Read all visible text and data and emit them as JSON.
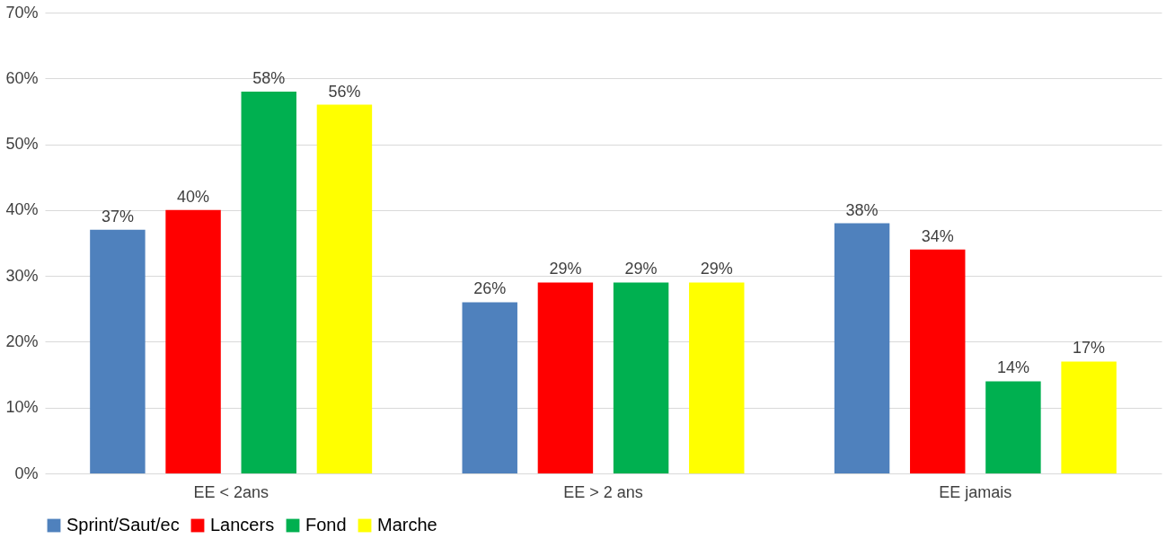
{
  "chart_data": {
    "type": "bar",
    "categories": [
      "EE < 2ans",
      "EE > 2 ans",
      "EE jamais"
    ],
    "series": [
      {
        "name": "Sprint/Saut/ec",
        "color": "#4f81bd",
        "values": [
          37,
          26,
          38
        ],
        "value_labels": [
          "37%",
          "26%",
          "38%"
        ]
      },
      {
        "name": "Lancers",
        "color": "#ff0000",
        "values": [
          40,
          29,
          34
        ],
        "value_labels": [
          "40%",
          "29%",
          "34%"
        ]
      },
      {
        "name": "Fond",
        "color": "#00b050",
        "values": [
          58,
          29,
          14
        ],
        "value_labels": [
          "58%",
          "29%",
          "14%"
        ]
      },
      {
        "name": "Marche",
        "color": "#ffff00",
        "values": [
          56,
          29,
          17
        ],
        "value_labels": [
          "56%",
          "29%",
          "17%"
        ]
      }
    ],
    "ylim": [
      0,
      70
    ],
    "yticks": [
      {
        "value": 0,
        "label": "0%"
      },
      {
        "value": 10,
        "label": "10%"
      },
      {
        "value": 20,
        "label": "20%"
      },
      {
        "value": 30,
        "label": "30%"
      },
      {
        "value": 40,
        "label": "40%"
      },
      {
        "value": 50,
        "label": "50%"
      },
      {
        "value": 60,
        "label": "60%"
      },
      {
        "value": 70,
        "label": "70%"
      }
    ],
    "grid": "y",
    "legend": "bottom"
  }
}
